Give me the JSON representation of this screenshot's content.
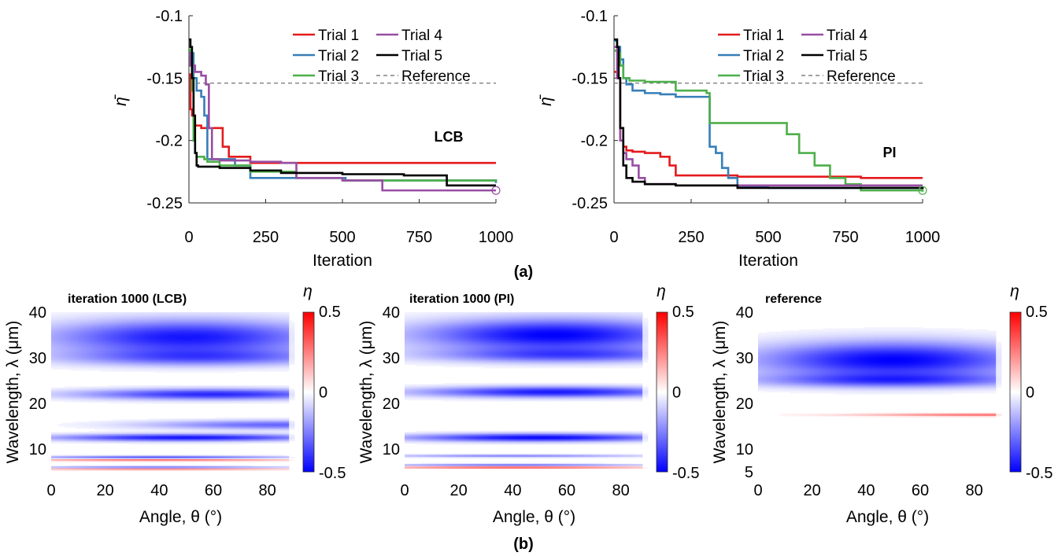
{
  "figure": {
    "sublabel_a": "(a)",
    "sublabel_b": "(b)",
    "colors": {
      "Trial 1": "#e41a1c",
      "Trial 2": "#377eb8",
      "Trial 3": "#4daf4a",
      "Trial 4": "#984ea3",
      "Trial 5": "#000000",
      "Reference": "#808080"
    },
    "colormap": {
      "min_color": "#0000ff",
      "mid_color": "#ffffff",
      "max_color": "#ff0000"
    }
  },
  "chart_data": [
    {
      "type": "line",
      "annotation": "LCB",
      "xlabel": "Iteration",
      "ylabel": "η̄",
      "xlim": [
        0,
        1000
      ],
      "ylim": [
        -0.25,
        -0.1
      ],
      "xticks": [
        0,
        250,
        500,
        750,
        1000
      ],
      "yticks": [
        -0.25,
        -0.2,
        -0.15,
        -0.1
      ],
      "xtick_labels": [
        "0",
        "250",
        "500",
        "750",
        "1000"
      ],
      "ytick_labels": [
        "-0.25",
        "-0.2",
        "-0.15",
        "-0.1"
      ],
      "grid": false,
      "legend_position": "top-right",
      "reference": {
        "name": "Reference",
        "value": -0.154,
        "style": "dashed"
      },
      "series": [
        {
          "name": "Trial 1",
          "x": [
            0,
            5,
            10,
            15,
            20,
            40,
            100,
            110,
            130,
            200,
            1000
          ],
          "y": [
            -0.147,
            -0.175,
            -0.18,
            -0.185,
            -0.188,
            -0.19,
            -0.19,
            -0.205,
            -0.213,
            -0.218,
            -0.218
          ]
        },
        {
          "name": "Trial 2",
          "x": [
            0,
            10,
            15,
            25,
            40,
            50,
            60,
            150,
            200,
            500,
            510,
            1000
          ],
          "y": [
            -0.132,
            -0.13,
            -0.15,
            -0.16,
            -0.165,
            -0.18,
            -0.215,
            -0.22,
            -0.23,
            -0.23,
            -0.232,
            -0.234
          ]
        },
        {
          "name": "Trial 3",
          "x": [
            0,
            5,
            10,
            15,
            20,
            25,
            50,
            60,
            100,
            200,
            350,
            500,
            1000
          ],
          "y": [
            -0.127,
            -0.13,
            -0.16,
            -0.2,
            -0.21,
            -0.213,
            -0.215,
            -0.217,
            -0.22,
            -0.225,
            -0.23,
            -0.232,
            -0.233
          ]
        },
        {
          "name": "Trial 4",
          "x": [
            0,
            5,
            20,
            40,
            55,
            65,
            75,
            100,
            200,
            300,
            350,
            370,
            500,
            630,
            1000
          ],
          "y": [
            -0.13,
            -0.14,
            -0.145,
            -0.148,
            -0.155,
            -0.19,
            -0.215,
            -0.216,
            -0.217,
            -0.218,
            -0.23,
            -0.23,
            -0.232,
            -0.24,
            -0.24
          ]
        },
        {
          "name": "Trial 5",
          "x": [
            0,
            5,
            10,
            15,
            20,
            25,
            30,
            50,
            100,
            200,
            300,
            500,
            700,
            840,
            1000
          ],
          "y": [
            -0.119,
            -0.125,
            -0.15,
            -0.18,
            -0.21,
            -0.22,
            -0.221,
            -0.221,
            -0.222,
            -0.224,
            -0.226,
            -0.227,
            -0.228,
            -0.236,
            -0.236
          ]
        }
      ],
      "best_marker": {
        "x": 1000,
        "y": -0.24,
        "series": "Trial 4"
      }
    },
    {
      "type": "line",
      "annotation": "PI",
      "xlabel": "Iteration",
      "ylabel": "η̄",
      "xlim": [
        0,
        1000
      ],
      "ylim": [
        -0.25,
        -0.1
      ],
      "xticks": [
        0,
        250,
        500,
        750,
        1000
      ],
      "yticks": [
        -0.25,
        -0.2,
        -0.15,
        -0.1
      ],
      "xtick_labels": [
        "0",
        "250",
        "500",
        "750",
        "1000"
      ],
      "ytick_labels": [
        "-0.25",
        "-0.2",
        "-0.15",
        "-0.1"
      ],
      "grid": false,
      "legend_position": "top-right",
      "reference": {
        "name": "Reference",
        "value": -0.154,
        "style": "dashed"
      },
      "series": [
        {
          "name": "Trial 1",
          "x": [
            0,
            10,
            20,
            30,
            40,
            60,
            100,
            150,
            180,
            200,
            400,
            600,
            800,
            1000
          ],
          "y": [
            -0.145,
            -0.15,
            -0.2,
            -0.205,
            -0.208,
            -0.209,
            -0.21,
            -0.213,
            -0.22,
            -0.228,
            -0.229,
            -0.229,
            -0.23,
            -0.23
          ]
        },
        {
          "name": "Trial 2",
          "x": [
            0,
            10,
            20,
            30,
            40,
            60,
            100,
            150,
            200,
            300,
            310,
            330,
            350,
            370,
            400,
            500,
            1000
          ],
          "y": [
            -0.12,
            -0.125,
            -0.135,
            -0.15,
            -0.155,
            -0.16,
            -0.162,
            -0.163,
            -0.165,
            -0.165,
            -0.205,
            -0.21,
            -0.222,
            -0.23,
            -0.237,
            -0.238,
            -0.238
          ]
        },
        {
          "name": "Trial 3",
          "x": [
            0,
            10,
            20,
            30,
            50,
            100,
            200,
            300,
            310,
            550,
            560,
            600,
            650,
            700,
            750,
            800,
            1000
          ],
          "y": [
            -0.128,
            -0.13,
            -0.14,
            -0.15,
            -0.152,
            -0.153,
            -0.16,
            -0.162,
            -0.186,
            -0.186,
            -0.195,
            -0.21,
            -0.22,
            -0.23,
            -0.235,
            -0.24,
            -0.241
          ]
        },
        {
          "name": "Trial 4",
          "x": [
            0,
            10,
            20,
            30,
            40,
            60,
            80,
            100,
            200,
            1000
          ],
          "y": [
            -0.125,
            -0.15,
            -0.2,
            -0.21,
            -0.215,
            -0.22,
            -0.23,
            -0.235,
            -0.236,
            -0.236
          ]
        },
        {
          "name": "Trial 5",
          "x": [
            0,
            10,
            15,
            20,
            30,
            40,
            60,
            100,
            200,
            400,
            1000
          ],
          "y": [
            -0.119,
            -0.125,
            -0.15,
            -0.19,
            -0.22,
            -0.23,
            -0.233,
            -0.235,
            -0.236,
            -0.238,
            -0.239
          ]
        }
      ],
      "best_marker": {
        "x": 1000,
        "y": -0.24,
        "series": "Trial 3"
      }
    },
    {
      "type": "heatmap",
      "title": "iteration 1000 (LCB)",
      "xlabel": "Angle, θ (°)",
      "ylabel": "Wavelength, λ (μm)",
      "xlim": [
        0,
        90
      ],
      "ylim": [
        5,
        40
      ],
      "xticks": [
        0,
        20,
        40,
        60,
        80
      ],
      "yticks": [
        10,
        20,
        30,
        40
      ],
      "colorbar": {
        "label": "η",
        "min": -0.5,
        "max": 0.5,
        "ticks": [
          "0.5",
          "0",
          "-0.5"
        ]
      },
      "bands": [
        {
          "center": 34.5,
          "width": 3.8,
          "value": -0.46,
          "theta_peak": 50
        },
        {
          "center": 30.0,
          "width": 1.8,
          "value": -0.28,
          "theta_peak": 55
        },
        {
          "center": 22.0,
          "width": 1.2,
          "value": -0.42,
          "theta_peak": 60
        },
        {
          "center": 15.3,
          "width": 1.0,
          "value": -0.3,
          "theta_peak": 85
        },
        {
          "center": 12.5,
          "width": 0.8,
          "value": -0.46,
          "theta_peak": 50
        },
        {
          "center": 8.2,
          "width": 0.3,
          "value": -0.35,
          "theta_peak": 40
        },
        {
          "center": 7.6,
          "width": 0.2,
          "value": 0.35,
          "theta_peak": 40
        },
        {
          "center": 6.0,
          "width": 0.25,
          "value": -0.3,
          "theta_peak": 40
        },
        {
          "center": 5.6,
          "width": 0.2,
          "value": 0.3,
          "theta_peak": 40
        }
      ]
    },
    {
      "type": "heatmap",
      "title": "iteration 1000 (PI)",
      "xlabel": "Angle, θ (°)",
      "ylabel": "Wavelength, λ (μm)",
      "xlim": [
        0,
        90
      ],
      "ylim": [
        5,
        40
      ],
      "xticks": [
        0,
        20,
        40,
        60,
        80
      ],
      "yticks": [
        10,
        20,
        30,
        40
      ],
      "colorbar": {
        "label": "η",
        "min": -0.5,
        "max": 0.5,
        "ticks": [
          "0.5",
          "0",
          "-0.5"
        ]
      },
      "bands": [
        {
          "center": 35.0,
          "width": 3.5,
          "value": -0.5,
          "theta_peak": 55
        },
        {
          "center": 30.5,
          "width": 1.6,
          "value": -0.3,
          "theta_peak": 60
        },
        {
          "center": 22.5,
          "width": 1.2,
          "value": -0.45,
          "theta_peak": 55
        },
        {
          "center": 12.5,
          "width": 0.9,
          "value": -0.48,
          "theta_peak": 50
        },
        {
          "center": 8.5,
          "width": 0.3,
          "value": -0.25,
          "theta_peak": 40
        },
        {
          "center": 6.5,
          "width": 0.25,
          "value": -0.3,
          "theta_peak": 40
        },
        {
          "center": 6.0,
          "width": 0.2,
          "value": 0.4,
          "theta_peak": 40
        }
      ]
    },
    {
      "type": "heatmap",
      "title": "reference",
      "xlabel": "Angle, θ (°)",
      "ylabel": "Wavelength, λ (μm)",
      "xlim": [
        0,
        90
      ],
      "ylim": [
        5,
        40
      ],
      "xticks": [
        0,
        20,
        40,
        60,
        80
      ],
      "yticks": [
        5,
        10,
        20,
        30,
        40
      ],
      "colorbar": {
        "label": "η",
        "min": -0.5,
        "max": 0.5,
        "ticks": [
          "0.5",
          "0",
          "-0.5"
        ]
      },
      "bands": [
        {
          "center": 29.5,
          "width": 4.0,
          "value": -0.5,
          "theta_peak": 50
        },
        {
          "center": 25.0,
          "width": 1.5,
          "value": -0.3,
          "theta_peak": 50
        },
        {
          "center": 17.5,
          "width": 0.3,
          "value": 0.3,
          "theta_peak": 88
        }
      ]
    }
  ]
}
